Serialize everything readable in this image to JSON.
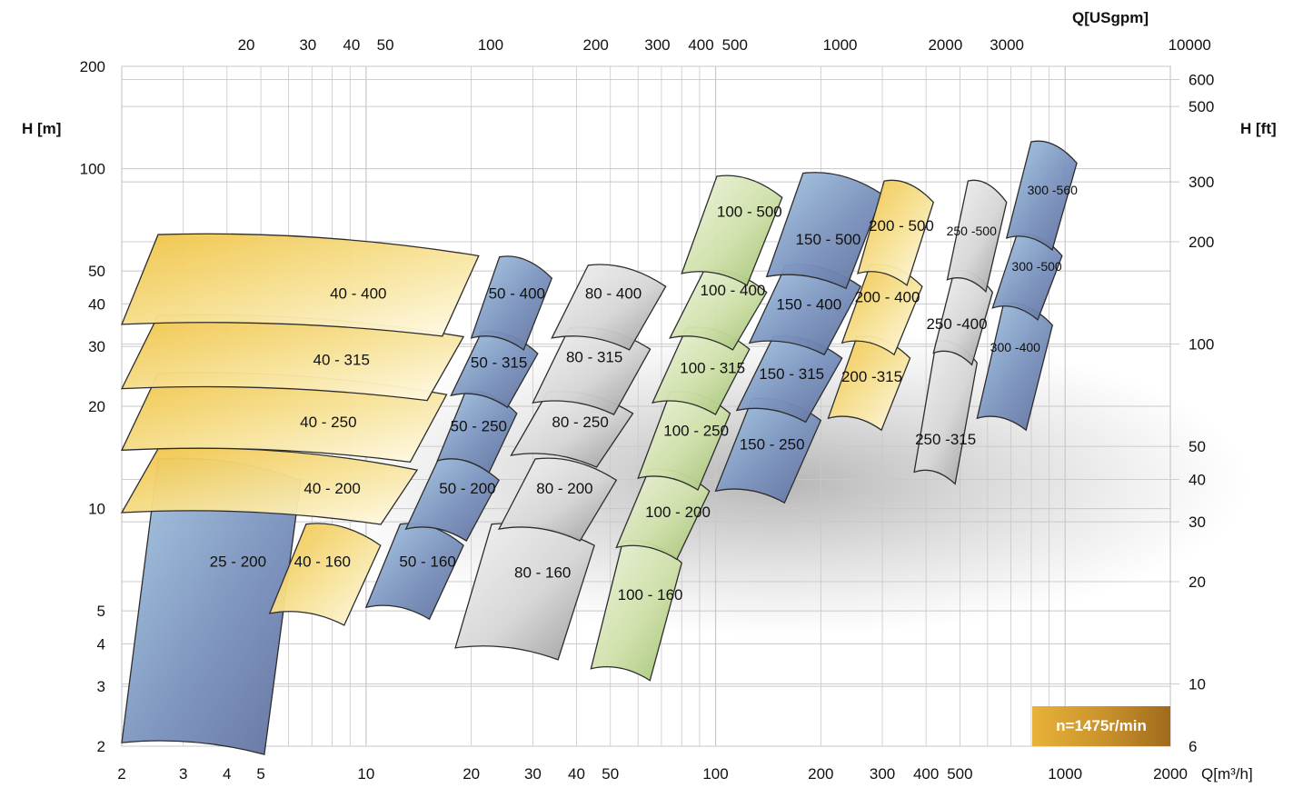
{
  "chart_data": {
    "type": "area",
    "y_log": true,
    "x_log": true,
    "xlim": [
      2,
      2000
    ],
    "ylim": [
      2,
      200
    ],
    "grid": true,
    "x_axis": {
      "label": "Q[m³/h]",
      "ticks": [
        2,
        3,
        4,
        5,
        10,
        20,
        30,
        40,
        50,
        100,
        200,
        300,
        400,
        500,
        1000,
        2000
      ],
      "tick_labels": [
        "2",
        "3",
        "4",
        "5",
        "10",
        "20",
        "30",
        "40",
        "50",
        "100",
        "200",
        "300",
        "400",
        "500",
        "1000",
        "2000"
      ]
    },
    "x2_axis": {
      "label": "Q[USgpm]",
      "ticks": [
        20,
        30,
        40,
        50,
        100,
        200,
        300,
        400,
        500,
        1000,
        2000,
        3000,
        10000
      ],
      "tick_labels": [
        "20",
        "30",
        "40",
        "50",
        "100",
        "200",
        "300",
        "400",
        "500",
        "1000",
        "2000",
        "3000",
        "10000"
      ]
    },
    "y_axis": {
      "label": "H [m]",
      "ticks": [
        2,
        3,
        4,
        5,
        10,
        20,
        30,
        40,
        50,
        100,
        200
      ],
      "tick_labels": [
        "2",
        "3",
        "4",
        "5",
        "10",
        "20",
        "30",
        "40",
        "50",
        "100",
        "200"
      ]
    },
    "y2_axis": {
      "label": "H [ft]",
      "ticks": [
        6,
        10,
        20,
        30,
        40,
        50,
        100,
        200,
        300,
        500,
        600
      ],
      "tick_labels": [
        "6",
        "10",
        "20",
        "30",
        "40",
        "50",
        "100",
        "200",
        "300",
        "500",
        "600"
      ]
    },
    "badge": "n=1475r/min",
    "regions": [
      {
        "label": "25 - 200",
        "color": "blue",
        "qmin": 2.0,
        "qmax": 6.5,
        "hmin": 2.0,
        "hmax": 14.0,
        "label_q": 4.3,
        "label_h": 7.0
      },
      {
        "label": "40 - 160",
        "color": "yellow",
        "qmin": 5.3,
        "qmax": 11.0,
        "hmin": 4.8,
        "hmax": 9.0,
        "label_q": 7.5,
        "label_h": 7.0
      },
      {
        "label": "40 - 200",
        "color": "yellow",
        "qmin": 2.0,
        "qmax": 14.0,
        "hmin": 9.5,
        "hmax": 15.0,
        "label_q": 8.0,
        "label_h": 11.5
      },
      {
        "label": "40 - 250",
        "color": "yellow",
        "qmin": 2.0,
        "qmax": 17.0,
        "hmin": 14.5,
        "hmax": 25.0,
        "label_q": 7.8,
        "label_h": 18.0
      },
      {
        "label": "40 - 315",
        "color": "yellow",
        "qmin": 2.0,
        "qmax": 19.0,
        "hmin": 22.0,
        "hmax": 37.0,
        "label_q": 8.5,
        "label_h": 27.5
      },
      {
        "label": "40 - 400",
        "color": "yellow",
        "qmin": 2.0,
        "qmax": 21.0,
        "hmin": 34.0,
        "hmax": 64.0,
        "label_q": 9.5,
        "label_h": 43.0
      },
      {
        "label": "50 - 160",
        "color": "blue",
        "qmin": 10.0,
        "qmax": 19.0,
        "hmin": 5.0,
        "hmax": 9.0,
        "label_q": 15.0,
        "label_h": 7.0
      },
      {
        "label": "50 - 200",
        "color": "blue",
        "qmin": 13.0,
        "qmax": 24.0,
        "hmin": 8.5,
        "hmax": 14.0,
        "label_q": 19.5,
        "label_h": 11.5
      },
      {
        "label": "50 - 250",
        "color": "blue",
        "qmin": 16.0,
        "qmax": 27.0,
        "hmin": 13.5,
        "hmax": 22.0,
        "label_q": 21.0,
        "label_h": 17.5
      },
      {
        "label": "50 - 315",
        "color": "blue",
        "qmin": 17.5,
        "qmax": 31.0,
        "hmin": 21.0,
        "hmax": 33.0,
        "label_q": 24.0,
        "label_h": 27.0
      },
      {
        "label": "50 - 400",
        "color": "blue",
        "qmin": 20.0,
        "qmax": 34.0,
        "hmin": 31.0,
        "hmax": 55.0,
        "label_q": 27.0,
        "label_h": 43.0
      },
      {
        "label": "80 - 160",
        "color": "gray",
        "qmin": 18.0,
        "qmax": 45.0,
        "hmin": 3.8,
        "hmax": 9.0,
        "label_q": 32.0,
        "label_h": 6.5
      },
      {
        "label": "80 - 200",
        "color": "gray",
        "qmin": 24.0,
        "qmax": 52.0,
        "hmin": 8.5,
        "hmax": 14.0,
        "label_q": 37.0,
        "label_h": 11.5
      },
      {
        "label": "80 - 250",
        "color": "gray",
        "qmin": 26.0,
        "qmax": 58.0,
        "hmin": 14.0,
        "hmax": 22.0,
        "label_q": 41.0,
        "label_h": 18.0
      },
      {
        "label": "80 - 315",
        "color": "gray",
        "qmin": 30.0,
        "qmax": 65.0,
        "hmin": 20.0,
        "hmax": 34.0,
        "label_q": 45.0,
        "label_h": 28.0
      },
      {
        "label": "80 - 400",
        "color": "gray",
        "qmin": 34.0,
        "qmax": 72.0,
        "hmin": 31.0,
        "hmax": 52.0,
        "label_q": 51.0,
        "label_h": 43.0
      },
      {
        "label": "100 - 160",
        "color": "green",
        "qmin": 44.0,
        "qmax": 80.0,
        "hmin": 3.3,
        "hmax": 8.0,
        "label_q": 65.0,
        "label_h": 5.6
      },
      {
        "label": "100 - 200",
        "color": "green",
        "qmin": 52.0,
        "qmax": 96.0,
        "hmin": 7.5,
        "hmax": 13.0,
        "label_q": 78.0,
        "label_h": 9.8
      },
      {
        "label": "100 - 250",
        "color": "green",
        "qmin": 60.0,
        "qmax": 110.0,
        "hmin": 12.0,
        "hmax": 22.0,
        "label_q": 88.0,
        "label_h": 17.0
      },
      {
        "label": "100 - 315",
        "color": "green",
        "qmin": 66.0,
        "qmax": 125.0,
        "hmin": 20.0,
        "hmax": 34.0,
        "label_q": 98.0,
        "label_h": 26.0
      },
      {
        "label": "100 - 400",
        "color": "green",
        "qmin": 74.0,
        "qmax": 140.0,
        "hmin": 31.0,
        "hmax": 50.0,
        "label_q": 112.0,
        "label_h": 44.0
      },
      {
        "label": "100 - 500",
        "color": "green",
        "qmin": 80.0,
        "qmax": 155.0,
        "hmin": 48.0,
        "hmax": 95.0,
        "label_q": 125.0,
        "label_h": 75.0
      },
      {
        "label": "150 - 250",
        "color": "blue",
        "qmin": 100.0,
        "qmax": 200.0,
        "hmin": 11.0,
        "hmax": 21.0,
        "label_q": 145.0,
        "label_h": 15.5
      },
      {
        "label": "150 - 315",
        "color": "blue",
        "qmin": 115.0,
        "qmax": 230.0,
        "hmin": 19.0,
        "hmax": 32.0,
        "label_q": 165.0,
        "label_h": 25.0
      },
      {
        "label": "150 - 400",
        "color": "blue",
        "qmin": 125.0,
        "qmax": 260.0,
        "hmin": 30.0,
        "hmax": 52.0,
        "label_q": 185.0,
        "label_h": 40.0
      },
      {
        "label": "150 - 500",
        "color": "blue",
        "qmin": 140.0,
        "qmax": 300.0,
        "hmin": 47.0,
        "hmax": 97.0,
        "label_q": 210.0,
        "label_h": 62.0
      },
      {
        "label": "200 -315",
        "color": "yellow",
        "qmin": 210.0,
        "qmax": 360.0,
        "hmin": 18.0,
        "hmax": 32.0,
        "label_q": 280.0,
        "label_h": 24.5
      },
      {
        "label": "200 - 400",
        "color": "yellow",
        "qmin": 230.0,
        "qmax": 390.0,
        "hmin": 30.0,
        "hmax": 52.0,
        "label_q": 310.0,
        "label_h": 42.0
      },
      {
        "label": "200 - 500",
        "color": "yellow",
        "qmin": 255.0,
        "qmax": 420.0,
        "hmin": 48.0,
        "hmax": 92.0,
        "label_q": 340.0,
        "label_h": 68.0
      },
      {
        "label": "250 -315",
        "color": "gray",
        "qmin": 370.0,
        "qmax": 560.0,
        "hmin": 12.5,
        "hmax": 31.0,
        "label_q": 455.0,
        "label_h": 16.0
      },
      {
        "label": "250 -400",
        "color": "gray",
        "qmin": 420.0,
        "qmax": 620.0,
        "hmin": 28.0,
        "hmax": 50.0,
        "label_q": 490.0,
        "label_h": 35.0
      },
      {
        "label": "250 -500",
        "color": "gray",
        "qmin": 460.0,
        "qmax": 680.0,
        "hmin": 46.0,
        "hmax": 92.0,
        "label_q": 540.0,
        "label_h": 66.0
      },
      {
        "label": "300 -400",
        "color": "blue",
        "qmin": 560.0,
        "qmax": 920.0,
        "hmin": 18.0,
        "hmax": 40.0,
        "label_q": 720.0,
        "label_h": 30.0
      },
      {
        "label": "300 -500",
        "color": "blue",
        "qmin": 620.0,
        "qmax": 980.0,
        "hmin": 38.0,
        "hmax": 64.0,
        "label_q": 830.0,
        "label_h": 52.0
      },
      {
        "label": "300 -560",
        "color": "blue",
        "qmin": 680.0,
        "qmax": 1080.0,
        "hmin": 61.0,
        "hmax": 120.0,
        "label_q": 920.0,
        "label_h": 87.0
      }
    ],
    "palette": {
      "blue": [
        "#a9c9e4",
        "#7b93be",
        "#5f6f9c"
      ],
      "yellow": [
        "#f0c344",
        "#f7e39a",
        "#fffbe9"
      ],
      "gray": [
        "#f3f3f3",
        "#d6d6d6",
        "#9a9a9a"
      ],
      "green": [
        "#eef4df",
        "#cfe0a9",
        "#9cbf6e"
      ]
    },
    "grid_color": "#c8c8c8",
    "outline_color": "#2d2d2d"
  }
}
